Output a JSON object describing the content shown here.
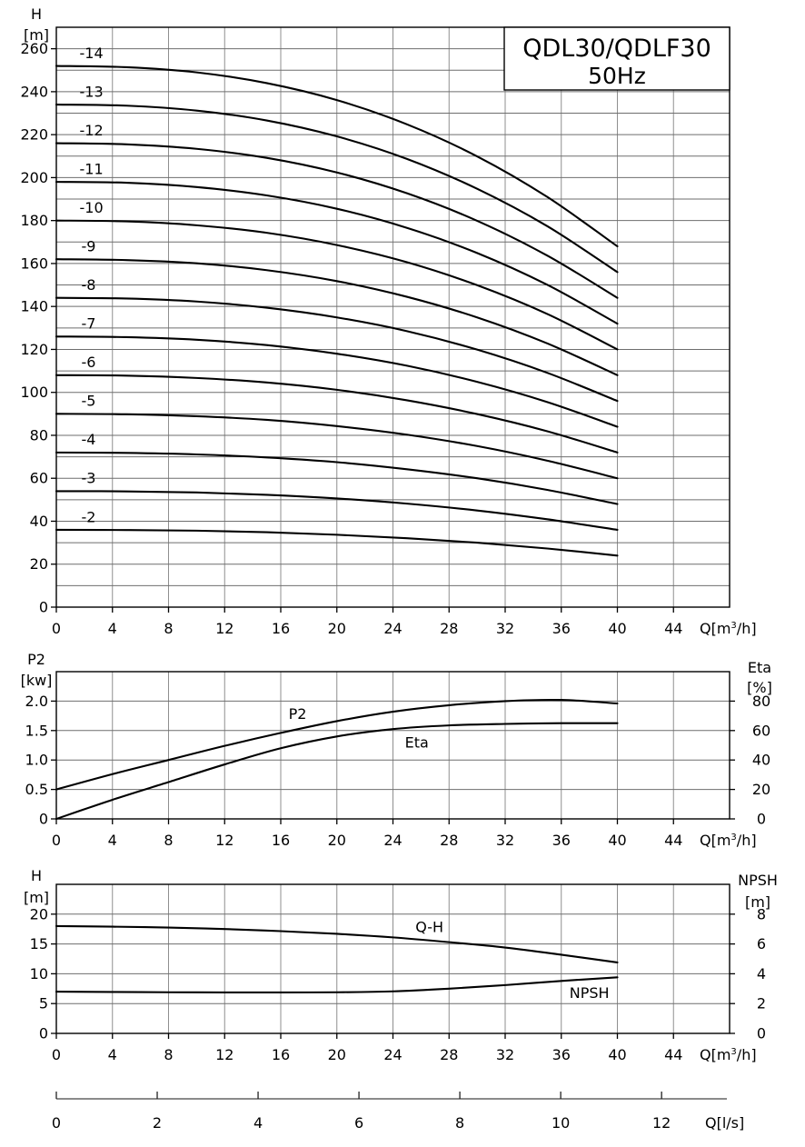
{
  "figure": {
    "background": "#ffffff",
    "line_color": "#000000",
    "grid_v_color": "#8f8f8f",
    "grid_h_color": "#6e6e6e"
  },
  "chart_data": [
    {
      "id": "head-curves",
      "type": "line",
      "title": "QDL30/QDLF30",
      "subtitle": "50Hz",
      "x": [
        0,
        5,
        10,
        15,
        20,
        25,
        30,
        35,
        40
      ],
      "x_axis": {
        "unit_parts": [
          "Q[m",
          "3",
          "/h]"
        ],
        "lim": [
          0,
          48
        ],
        "ticks": [
          "0",
          "4",
          "8",
          "12",
          "16",
          "20",
          "24",
          "28",
          "32",
          "36",
          "40",
          "44"
        ],
        "tick_values": [
          0,
          4,
          8,
          12,
          16,
          20,
          24,
          28,
          32,
          36,
          40,
          44
        ],
        "grid": [
          4,
          8,
          12,
          16,
          20,
          24,
          28,
          32,
          36,
          40,
          44
        ]
      },
      "y_axis": {
        "name": "H",
        "unit": "[m]",
        "lim": [
          0,
          270
        ],
        "ticks": [
          "0",
          "20",
          "40",
          "60",
          "80",
          "100",
          "120",
          "140",
          "160",
          "180",
          "200",
          "220",
          "240",
          "260"
        ],
        "tick_values": [
          0,
          20,
          40,
          60,
          80,
          100,
          120,
          140,
          160,
          180,
          200,
          220,
          240,
          260
        ],
        "grid": [
          10,
          20,
          30,
          40,
          50,
          60,
          70,
          80,
          90,
          100,
          110,
          120,
          130,
          140,
          150,
          160,
          170,
          180,
          190,
          200,
          210,
          220,
          230,
          240,
          250,
          260
        ]
      },
      "series": [
        {
          "label": "-2",
          "y": [
            36,
            35.9,
            35.6,
            34.9,
            33.7,
            32.1,
            30,
            27.3,
            24
          ],
          "label_pos": {
            "x": 2.3,
            "y": 42
          }
        },
        {
          "label": "-3",
          "y": [
            54,
            53.9,
            53.4,
            52.3,
            50.6,
            48.2,
            45,
            40.9,
            36
          ],
          "label_pos": {
            "x": 2.3,
            "y": 60
          }
        },
        {
          "label": "-4",
          "y": [
            72,
            71.8,
            71.1,
            69.7,
            67.5,
            64.2,
            60,
            54.6,
            48
          ],
          "label_pos": {
            "x": 2.3,
            "y": 78
          }
        },
        {
          "label": "-5",
          "y": [
            90,
            89.8,
            88.9,
            87.2,
            84.3,
            80.3,
            75,
            68.2,
            60
          ],
          "label_pos": {
            "x": 2.3,
            "y": 96
          }
        },
        {
          "label": "-6",
          "y": [
            108,
            107.8,
            106.7,
            104.6,
            101.2,
            96.3,
            89.9,
            81.9,
            72
          ],
          "label_pos": {
            "x": 2.3,
            "y": 114
          }
        },
        {
          "label": "-7",
          "y": [
            126,
            125.7,
            124.5,
            122,
            118,
            112.4,
            104.9,
            95.5,
            84
          ],
          "label_pos": {
            "x": 2.3,
            "y": 132
          }
        },
        {
          "label": "-8",
          "y": [
            144,
            143.7,
            142.3,
            139.4,
            134.9,
            128.5,
            119.9,
            109.1,
            96
          ],
          "label_pos": {
            "x": 2.3,
            "y": 150
          }
        },
        {
          "label": "-9",
          "y": [
            162,
            161.6,
            160.1,
            156.9,
            151.8,
            144.5,
            134.9,
            122.8,
            108
          ],
          "label_pos": {
            "x": 2.3,
            "y": 168
          }
        },
        {
          "label": "-10",
          "y": [
            180,
            179.6,
            177.8,
            174.3,
            168.6,
            160.6,
            149.9,
            136.5,
            120
          ],
          "label_pos": {
            "x": 2.5,
            "y": 186
          }
        },
        {
          "label": "-11",
          "y": [
            198,
            197.6,
            195.6,
            191.7,
            185.5,
            176.6,
            164.9,
            150.1,
            132
          ],
          "label_pos": {
            "x": 2.5,
            "y": 204
          }
        },
        {
          "label": "-12",
          "y": [
            216,
            215.5,
            213.4,
            209.2,
            202.4,
            192.7,
            179.9,
            163.7,
            144
          ],
          "label_pos": {
            "x": 2.5,
            "y": 222
          }
        },
        {
          "label": "-13",
          "y": [
            234,
            233.5,
            231.2,
            226.6,
            219.2,
            208.7,
            194.8,
            177.4,
            156
          ],
          "label_pos": {
            "x": 2.5,
            "y": 240
          }
        },
        {
          "label": "-14",
          "y": [
            252,
            251.4,
            249,
            244,
            236.1,
            224.8,
            209.9,
            191,
            168
          ],
          "label_pos": {
            "x": 2.5,
            "y": 258
          }
        }
      ]
    },
    {
      "id": "power-efficiency",
      "type": "line",
      "x_axis": {
        "unit_parts": [
          "Q[m",
          "3",
          "/h]"
        ],
        "lim": [
          0,
          48
        ],
        "ticks": [
          "0",
          "4",
          "8",
          "12",
          "16",
          "20",
          "24",
          "28",
          "32",
          "36",
          "40",
          "44"
        ],
        "tick_values": [
          0,
          4,
          8,
          12,
          16,
          20,
          24,
          28,
          32,
          36,
          40,
          44
        ],
        "grid": [
          4,
          8,
          12,
          16,
          20,
          24,
          28,
          32,
          36,
          40,
          44
        ]
      },
      "y_axis": {
        "name": "P2",
        "unit": "[kw]",
        "lim": [
          0,
          2.5
        ],
        "ticks": [
          "0",
          "0.5",
          "1.0",
          "1.5",
          "2.0"
        ],
        "tick_values": [
          0,
          0.5,
          1,
          1.5,
          2
        ],
        "grid": [
          0.5,
          1,
          1.5,
          2
        ]
      },
      "y2_axis": {
        "name": "Eta",
        "unit": "[%]",
        "lim": [
          0,
          100
        ],
        "ticks": [
          "0",
          "20",
          "40",
          "60",
          "80"
        ],
        "tick_values": [
          0,
          20,
          40,
          60,
          80
        ]
      },
      "series": [
        {
          "label": "P2",
          "x": [
            0,
            4,
            8,
            12,
            16,
            20,
            24,
            28,
            32,
            36,
            40
          ],
          "y": [
            0.5,
            0.76,
            1.0,
            1.24,
            1.46,
            1.66,
            1.82,
            1.93,
            2.0,
            2.02,
            1.96
          ],
          "label_pos": {
            "x": 17.2,
            "y": 1.78
          }
        },
        {
          "label": "Eta",
          "axis": "right",
          "x": [
            0,
            4,
            8,
            12,
            16,
            20,
            24,
            28,
            32,
            36,
            40
          ],
          "y": [
            0,
            13,
            25,
            37,
            48,
            56,
            61,
            63.5,
            64.5,
            65,
            65
          ],
          "label_pos": {
            "x": 25.7,
            "y": 52
          }
        }
      ]
    },
    {
      "id": "qh-npsh",
      "type": "line",
      "x_axis": {
        "unit_parts": [
          "Q[m",
          "3",
          "/h]"
        ],
        "lim": [
          0,
          48
        ],
        "ticks": [
          "0",
          "4",
          "8",
          "12",
          "16",
          "20",
          "24",
          "28",
          "32",
          "36",
          "40",
          "44"
        ],
        "tick_values": [
          0,
          4,
          8,
          12,
          16,
          20,
          24,
          28,
          32,
          36,
          40,
          44
        ],
        "grid": [
          4,
          8,
          12,
          16,
          20,
          24,
          28,
          32,
          36,
          40,
          44
        ]
      },
      "y_axis": {
        "name": "H",
        "unit": "[m]",
        "lim": [
          0,
          25
        ],
        "ticks": [
          "0",
          "5",
          "10",
          "15",
          "20"
        ],
        "tick_values": [
          0,
          5,
          10,
          15,
          20
        ],
        "grid": [
          5,
          10,
          15,
          20
        ]
      },
      "y2_axis": {
        "name": "NPSH",
        "unit": "[m]",
        "lim": [
          0,
          10
        ],
        "ticks": [
          "0",
          "2",
          "4",
          "6",
          "8"
        ],
        "tick_values": [
          0,
          2,
          4,
          6,
          8
        ]
      },
      "series": [
        {
          "label": "Q-H",
          "x": [
            0,
            4,
            8,
            12,
            16,
            20,
            24,
            28,
            32,
            36,
            40
          ],
          "y": [
            18,
            17.9,
            17.75,
            17.5,
            17.15,
            16.7,
            16.1,
            15.3,
            14.4,
            13.2,
            11.9
          ],
          "label_pos": {
            "x": 26.6,
            "y": 17.8
          }
        },
        {
          "label": "NPSH",
          "axis": "right",
          "x": [
            0,
            4,
            8,
            12,
            16,
            20,
            24,
            28,
            32,
            36,
            40
          ],
          "y": [
            2.8,
            2.78,
            2.76,
            2.75,
            2.75,
            2.76,
            2.82,
            3.0,
            3.24,
            3.52,
            3.76
          ],
          "label_pos": {
            "x": 38,
            "y": 2.7
          }
        }
      ]
    }
  ],
  "ls_axis": {
    "label": "Q[l/s]",
    "lim": [
      0,
      13.15
    ],
    "ticks": [
      "0",
      "2",
      "4",
      "6",
      "8",
      "10",
      "12"
    ],
    "tick_values": [
      0,
      2,
      4,
      6,
      8,
      10,
      12
    ]
  }
}
